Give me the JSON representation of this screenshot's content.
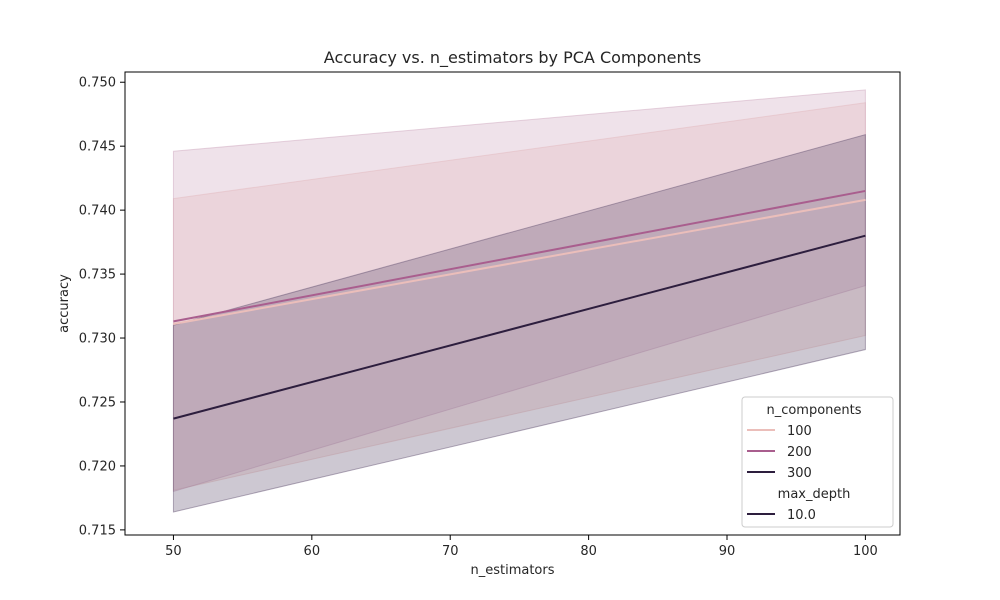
{
  "chart_data": {
    "type": "line",
    "title": "Accuracy vs. n_estimators by PCA Components",
    "xlabel": "n_estimators",
    "ylabel": "accuracy",
    "xlim": [
      46.5,
      102.5
    ],
    "ylim": [
      0.7146,
      0.7508
    ],
    "xticks": [
      50,
      60,
      70,
      80,
      90,
      100
    ],
    "yticks": [
      0.715,
      0.72,
      0.725,
      0.73,
      0.735,
      0.74,
      0.745,
      0.75
    ],
    "x": [
      50,
      100
    ],
    "grid": false,
    "legend_position": "lower-right",
    "legend": {
      "hue_title": "n_components",
      "style_title": "max_depth",
      "style_entries": [
        {
          "label": "10.0",
          "color": "#2d1e3e"
        }
      ]
    },
    "series": [
      {
        "name": "100",
        "values": [
          0.7311,
          0.7408
        ],
        "ci_low": [
          0.7181,
          0.7302
        ],
        "ci_high": [
          0.7409,
          0.7484
        ],
        "color": "#ebbeba",
        "band_color": "#ebbeba"
      },
      {
        "name": "200",
        "values": [
          0.7313,
          0.7415
        ],
        "ci_low": [
          0.718,
          0.7341
        ],
        "ci_high": [
          0.7446,
          0.7494
        ],
        "color": "#a95e8e",
        "band_color": "#c9a0b9"
      },
      {
        "name": "300",
        "values": [
          0.7237,
          0.738
        ],
        "ci_low": [
          0.7164,
          0.7291
        ],
        "ci_high": [
          0.731,
          0.7459
        ],
        "color": "#2d1e3e",
        "band_color": "#5a4a6a"
      }
    ]
  }
}
